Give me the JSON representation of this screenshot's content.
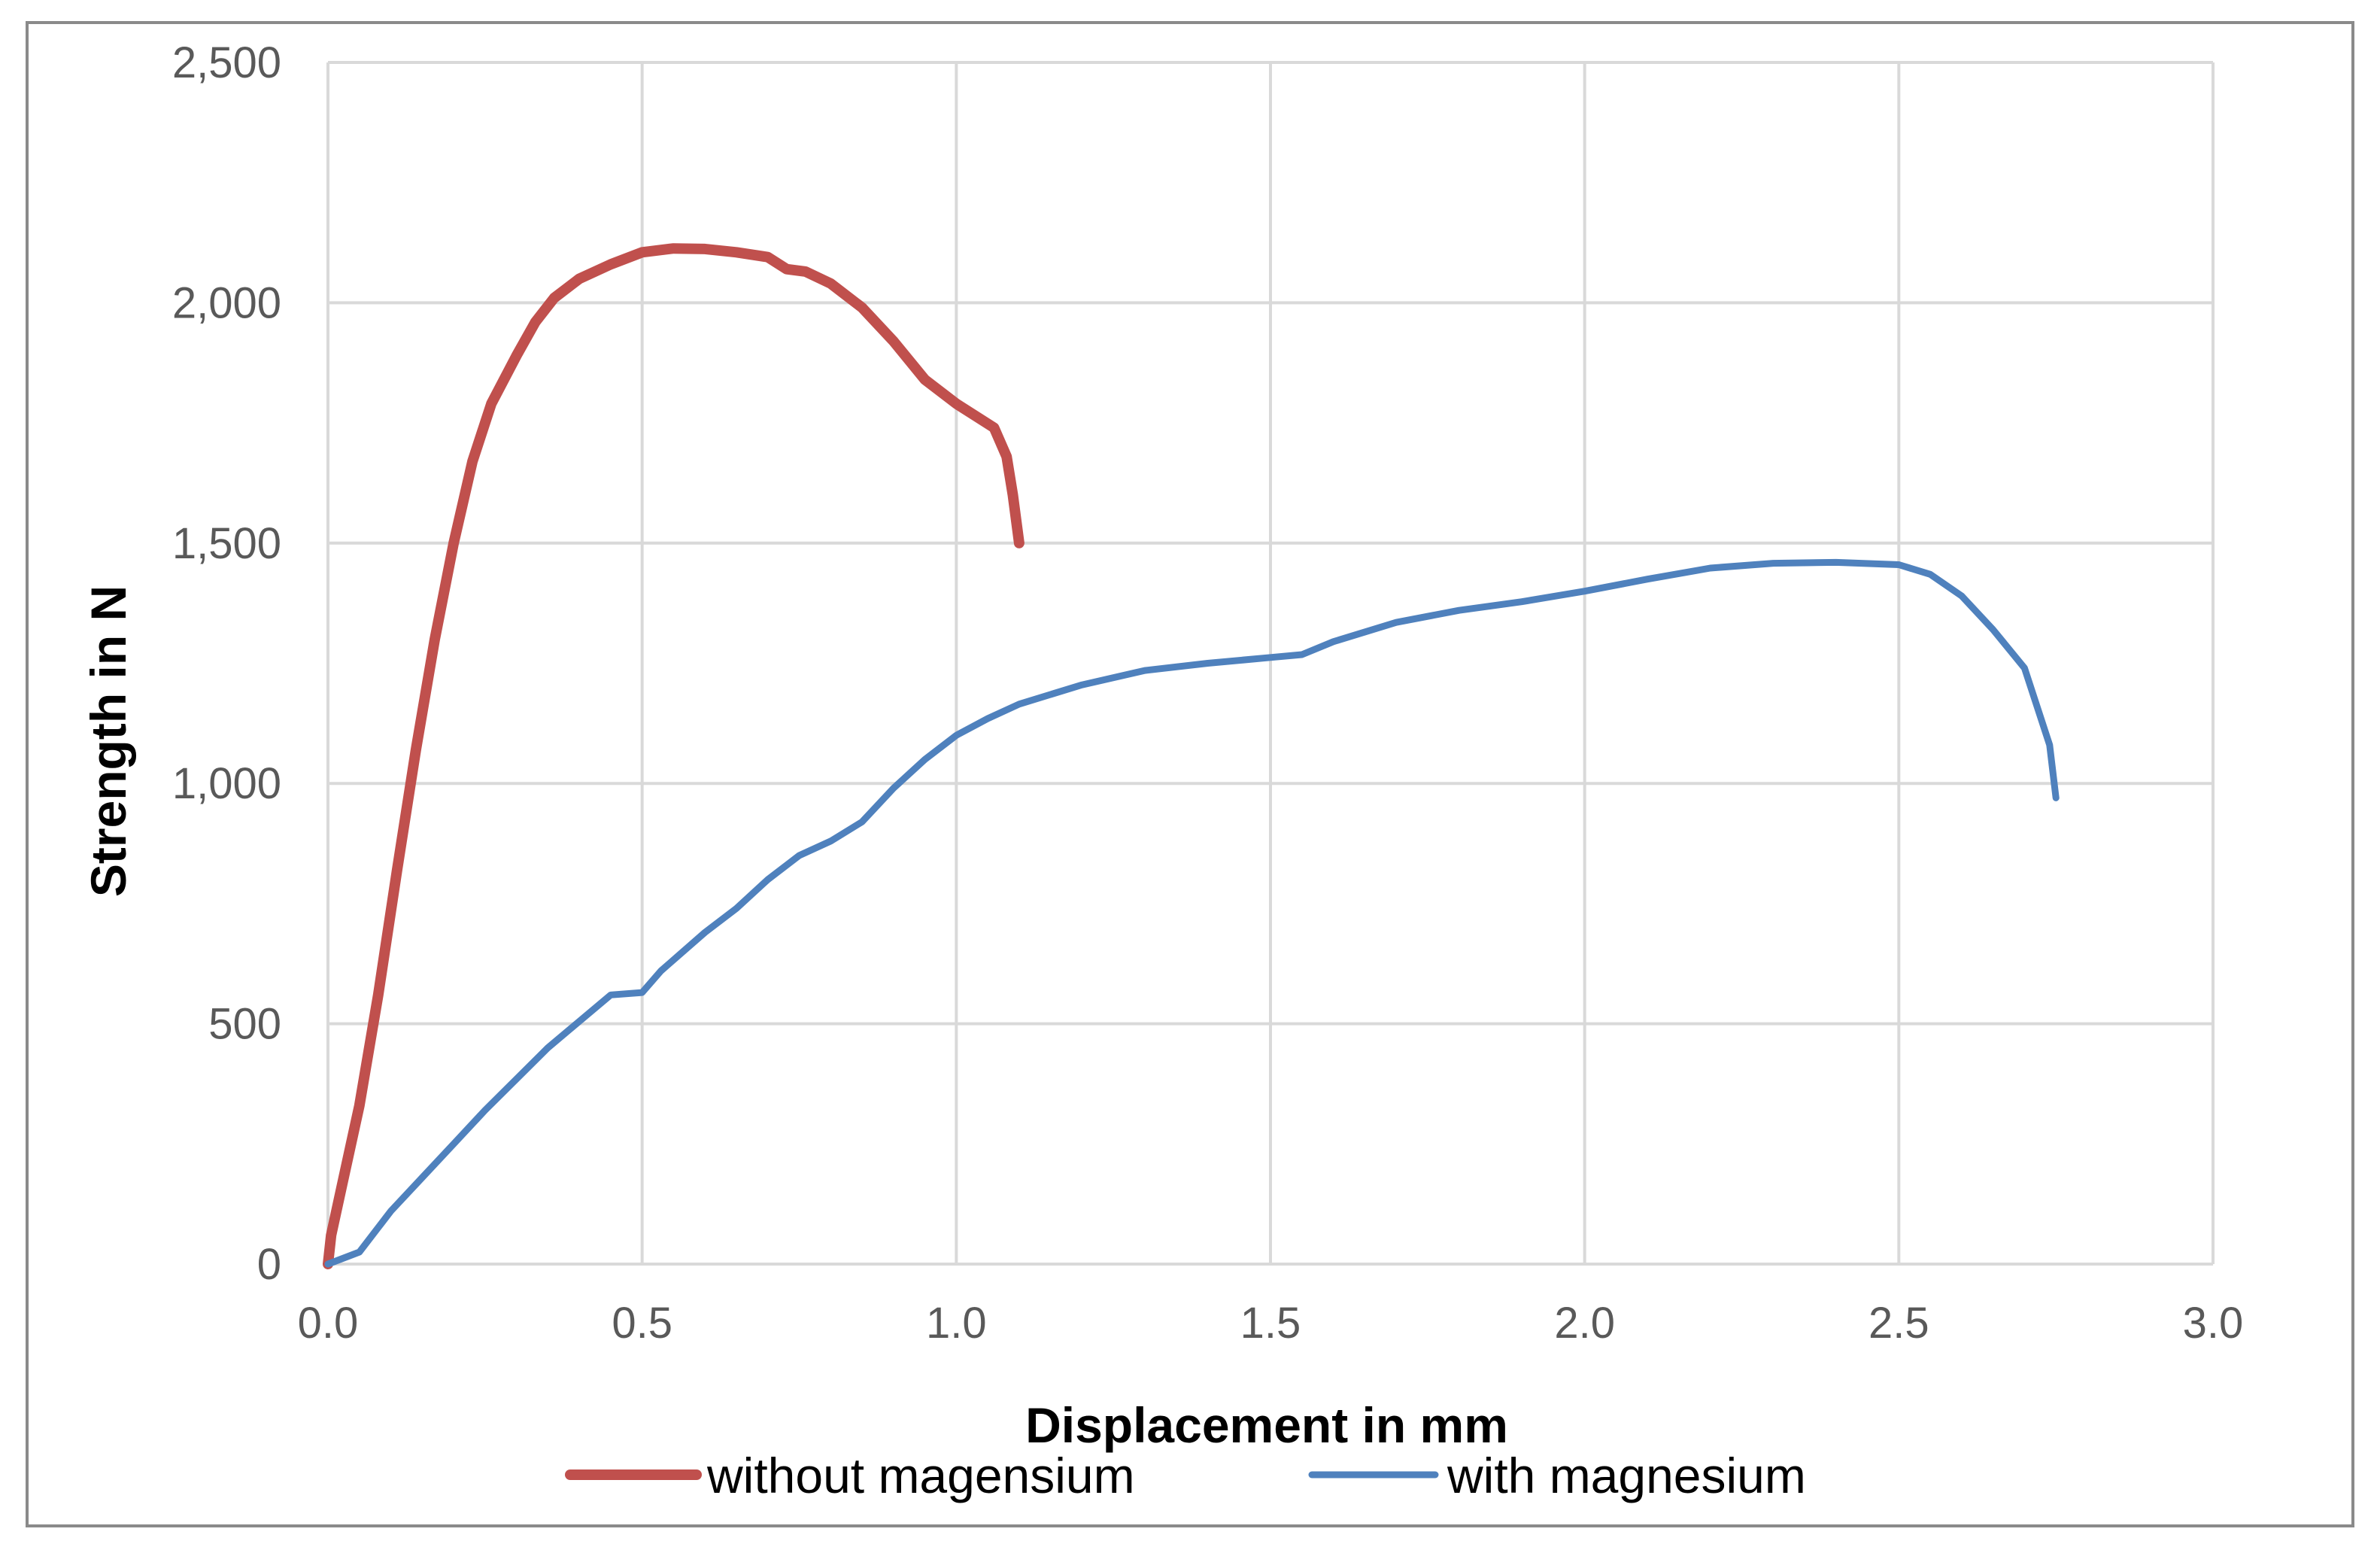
{
  "chart_data": {
    "type": "line",
    "title": "",
    "xlabel": "Displacement in mm",
    "ylabel": "Strength in N",
    "xlim": [
      0,
      3.0
    ],
    "ylim": [
      0,
      2500
    ],
    "x_ticks": [
      "0.0",
      "0.5",
      "1.0",
      "1.5",
      "2.0",
      "2.5",
      "3.0"
    ],
    "y_ticks": [
      "0",
      "500",
      "1,000",
      "1,500",
      "2,000",
      "2,500"
    ],
    "grid": true,
    "legend_position": "bottom",
    "series": [
      {
        "name": "without magensium",
        "color": "#C0504D",
        "points": [
          [
            0.0,
            0
          ],
          [
            0.005,
            60
          ],
          [
            0.02,
            150
          ],
          [
            0.05,
            330
          ],
          [
            0.08,
            560
          ],
          [
            0.11,
            820
          ],
          [
            0.14,
            1070
          ],
          [
            0.17,
            1300
          ],
          [
            0.2,
            1500
          ],
          [
            0.23,
            1670
          ],
          [
            0.26,
            1790
          ],
          [
            0.3,
            1890
          ],
          [
            0.33,
            1960
          ],
          [
            0.36,
            2010
          ],
          [
            0.4,
            2050
          ],
          [
            0.45,
            2080
          ],
          [
            0.5,
            2105
          ],
          [
            0.55,
            2113
          ],
          [
            0.6,
            2112
          ],
          [
            0.65,
            2105
          ],
          [
            0.7,
            2095
          ],
          [
            0.73,
            2070
          ],
          [
            0.76,
            2065
          ],
          [
            0.8,
            2040
          ],
          [
            0.85,
            1990
          ],
          [
            0.9,
            1920
          ],
          [
            0.95,
            1840
          ],
          [
            1.0,
            1790
          ],
          [
            1.03,
            1765
          ],
          [
            1.06,
            1740
          ],
          [
            1.08,
            1680
          ],
          [
            1.09,
            1600
          ],
          [
            1.095,
            1550
          ],
          [
            1.1,
            1500
          ]
        ]
      },
      {
        "name": "with magnesium",
        "color": "#4F81BD",
        "points": [
          [
            0.0,
            0
          ],
          [
            0.05,
            25
          ],
          [
            0.1,
            110
          ],
          [
            0.15,
            180
          ],
          [
            0.2,
            250
          ],
          [
            0.25,
            320
          ],
          [
            0.3,
            385
          ],
          [
            0.35,
            450
          ],
          [
            0.4,
            505
          ],
          [
            0.45,
            560
          ],
          [
            0.5,
            565
          ],
          [
            0.53,
            610
          ],
          [
            0.6,
            690
          ],
          [
            0.65,
            740
          ],
          [
            0.7,
            800
          ],
          [
            0.75,
            850
          ],
          [
            0.8,
            880
          ],
          [
            0.85,
            920
          ],
          [
            0.9,
            990
          ],
          [
            0.95,
            1050
          ],
          [
            1.0,
            1100
          ],
          [
            1.05,
            1135
          ],
          [
            1.1,
            1165
          ],
          [
            1.2,
            1205
          ],
          [
            1.3,
            1235
          ],
          [
            1.4,
            1250
          ],
          [
            1.5,
            1262
          ],
          [
            1.55,
            1268
          ],
          [
            1.6,
            1295
          ],
          [
            1.7,
            1335
          ],
          [
            1.8,
            1360
          ],
          [
            1.9,
            1378
          ],
          [
            2.0,
            1400
          ],
          [
            2.1,
            1425
          ],
          [
            2.2,
            1448
          ],
          [
            2.3,
            1458
          ],
          [
            2.4,
            1460
          ],
          [
            2.5,
            1455
          ],
          [
            2.55,
            1435
          ],
          [
            2.6,
            1390
          ],
          [
            2.65,
            1320
          ],
          [
            2.7,
            1240
          ],
          [
            2.72,
            1160
          ],
          [
            2.74,
            1080
          ],
          [
            2.75,
            970
          ]
        ]
      }
    ]
  }
}
